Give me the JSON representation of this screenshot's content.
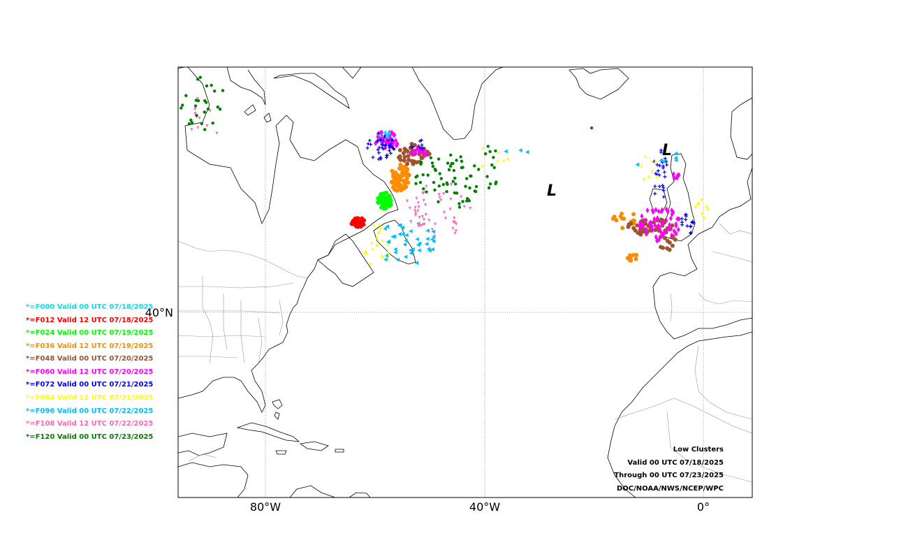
{
  "map": {
    "lon_labels": [
      "80°W",
      "40°W",
      "0°"
    ],
    "lat_labels": [
      "40°N"
    ],
    "low_marker": "L"
  },
  "legend": {
    "items": [
      {
        "text": "*=F000 Valid 00 UTC 07/18/2025",
        "color": "#00e5ee"
      },
      {
        "text": "*=F012 Valid 12 UTC 07/18/2025",
        "color": "#ff0000"
      },
      {
        "text": "*=F024 Valid 00 UTC 07/19/2025",
        "color": "#00ff00"
      },
      {
        "text": "*=F036 Valid 12 UTC 07/19/2025",
        "color": "#ff8c00"
      },
      {
        "text": "*=F048 Valid 00 UTC 07/20/2025",
        "color": "#a0522d"
      },
      {
        "text": "*=F060 Valid 12 UTC 07/20/2025",
        "color": "#ff00ff"
      },
      {
        "text": "*=F072 Valid 00 UTC 07/21/2025",
        "color": "#0000ee"
      },
      {
        "text": "*=F084 Valid 12 UTC 07/21/2025",
        "color": "#ffff00"
      },
      {
        "text": "*=F096 Valid 00 UTC 07/22/2025",
        "color": "#00bfff"
      },
      {
        "text": "*=F108 Valid 12 UTC 07/22/2025",
        "color": "#ff69b4"
      },
      {
        "text": "*=F120 Valid 00 UTC 07/23/2025",
        "color": "#008000"
      }
    ]
  },
  "info": {
    "title": "Low Clusters",
    "valid": "Valid 00 UTC 07/18/2025",
    "through": "Through 00 UTC 07/23/2025",
    "source": "DOC/NOAA/NWS/NCEP/WPC"
  }
}
